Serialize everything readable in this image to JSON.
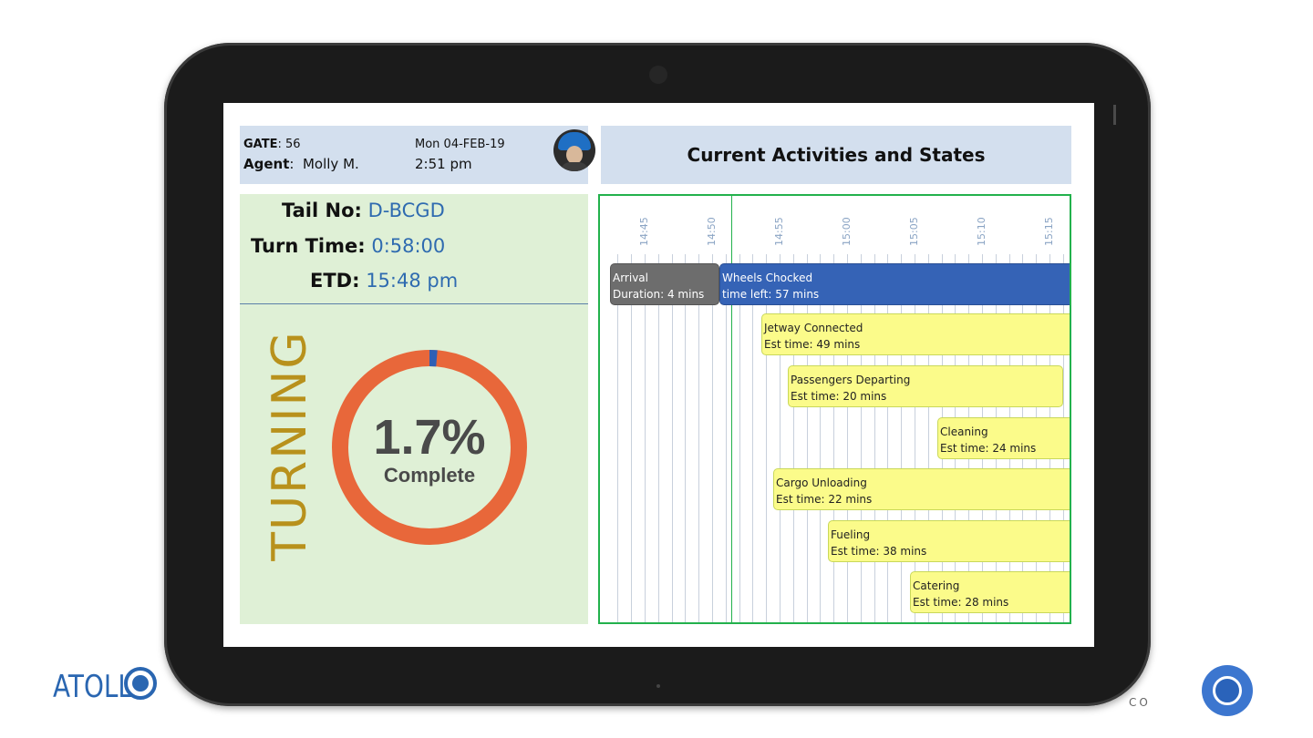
{
  "gate": {
    "label": "GATE",
    "value": "56"
  },
  "agent": {
    "label": "Agent",
    "value": "Molly M."
  },
  "date": "Mon 04-FEB-19",
  "time": "2:51 pm",
  "title": "Current Activities and States",
  "tail": {
    "label": "Tail No:",
    "value": "D-BCGD"
  },
  "turn_time": {
    "label": "Turn Time:",
    "value": "0:58:00"
  },
  "etd": {
    "label": "ETD:",
    "value": "15:48 pm"
  },
  "status": "TURNING",
  "progress": {
    "percent_text": "1.7%",
    "label": "Complete",
    "fraction": 0.017
  },
  "colors": {
    "ring": "#e8673a",
    "progress_mark": "#2f5fb5",
    "status": "#b8911c",
    "accent_blue": "#2f6bb0"
  },
  "timeline": {
    "ticks": [
      "14:45",
      "14:50",
      "14:55",
      "15:00",
      "15:05",
      "15:10",
      "15:15"
    ],
    "activities": [
      {
        "name": "Arrival",
        "detail": "Duration: 4 mins",
        "kind": "gray"
      },
      {
        "name": "Wheels Chocked",
        "detail": "time left: 57 mins",
        "kind": "blue"
      },
      {
        "name": "Jetway Connected",
        "detail": "Est time: 49 mins",
        "kind": "yellow"
      },
      {
        "name": "Passengers Departing",
        "detail": "Est time: 20 mins",
        "kind": "yellow"
      },
      {
        "name": "Cleaning",
        "detail": "Est time: 24 mins",
        "kind": "yellow"
      },
      {
        "name": "Cargo Unloading",
        "detail": "Est time: 22 mins",
        "kind": "yellow"
      },
      {
        "name": "Fueling",
        "detail": "Est time: 38 mins",
        "kind": "yellow"
      },
      {
        "name": "Catering",
        "detail": "Est time: 28 mins",
        "kind": "yellow"
      }
    ]
  },
  "branding": {
    "logo_text": "ATOLL",
    "footer_text": "CO"
  }
}
